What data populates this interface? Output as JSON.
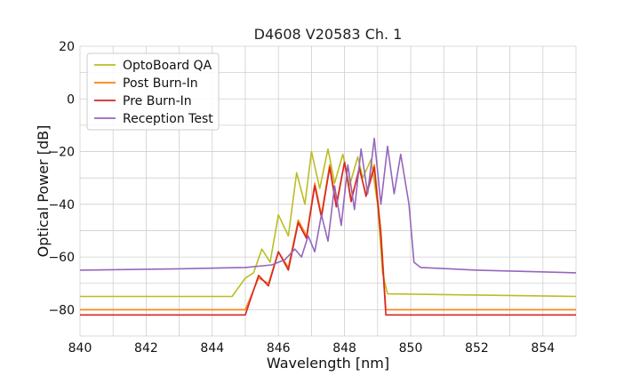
{
  "chart_data": {
    "type": "line",
    "title": "D4608 V20583 Ch. 1",
    "xlabel": "Wavelength [nm]",
    "ylabel": "Optical Power [dB]",
    "xlim": [
      840,
      855
    ],
    "ylim": [
      -90,
      20
    ],
    "xticks": [
      840,
      842,
      844,
      846,
      848,
      850,
      852,
      854
    ],
    "yticks": [
      20,
      0,
      -20,
      -40,
      -60,
      -80
    ],
    "ytick_labels": [
      "20",
      "0",
      "−20",
      "−40",
      "−60",
      "−80"
    ],
    "grid": true,
    "legend_position": "top-left",
    "series": [
      {
        "name": "OptoBoard QA",
        "color": "#bcbd22",
        "x": [
          840,
          844.6,
          845.0,
          845.25,
          845.5,
          845.75,
          846.0,
          846.3,
          846.55,
          846.8,
          847.0,
          847.25,
          847.5,
          847.7,
          847.95,
          848.15,
          848.4,
          848.55,
          848.8,
          849.0,
          849.15,
          849.3,
          855
        ],
        "y": [
          -75,
          -75,
          -68,
          -66,
          -57,
          -62,
          -44,
          -52,
          -28,
          -40,
          -20,
          -34,
          -19,
          -32,
          -21,
          -33,
          -22,
          -30,
          -23,
          -40,
          -66,
          -74,
          -75
        ]
      },
      {
        "name": "Post Burn-In",
        "color": "#ff7f0e",
        "x": [
          840,
          845.0,
          845.4,
          845.7,
          846.0,
          846.3,
          846.6,
          846.85,
          847.1,
          847.3,
          847.55,
          847.75,
          848.0,
          848.2,
          848.45,
          848.65,
          848.9,
          849.1,
          849.25,
          855
        ],
        "y": [
          -80,
          -80,
          -68,
          -70,
          -58,
          -64,
          -46,
          -52,
          -32,
          -44,
          -25,
          -40,
          -24,
          -38,
          -27,
          -36,
          -25,
          -50,
          -80,
          -80
        ]
      },
      {
        "name": "Pre Burn-In",
        "color": "#d62728",
        "x": [
          840,
          845.0,
          845.4,
          845.7,
          846.0,
          846.3,
          846.6,
          846.85,
          847.1,
          847.3,
          847.55,
          847.75,
          848.0,
          848.2,
          848.45,
          848.65,
          848.9,
          849.1,
          849.25,
          855
        ],
        "y": [
          -82,
          -82,
          -67,
          -71,
          -58,
          -65,
          -47,
          -53,
          -33,
          -45,
          -26,
          -41,
          -24,
          -39,
          -26,
          -37,
          -26,
          -52,
          -82,
          -82
        ]
      },
      {
        "name": "Reception Test",
        "color": "#9467bd",
        "x": [
          840,
          843,
          845,
          845.8,
          846.2,
          846.5,
          846.7,
          846.9,
          847.1,
          847.3,
          847.5,
          847.7,
          847.9,
          848.1,
          848.3,
          848.5,
          848.7,
          848.9,
          849.1,
          849.3,
          849.5,
          849.7,
          849.95,
          850.1,
          850.3,
          852,
          855
        ],
        "y": [
          -65,
          -64.5,
          -64,
          -63,
          -61,
          -57,
          -60,
          -52,
          -58,
          -44,
          -54,
          -33,
          -48,
          -25,
          -42,
          -19,
          -36,
          -15,
          -40,
          -18,
          -36,
          -21,
          -40,
          -62,
          -64,
          -65,
          -66
        ]
      }
    ]
  }
}
